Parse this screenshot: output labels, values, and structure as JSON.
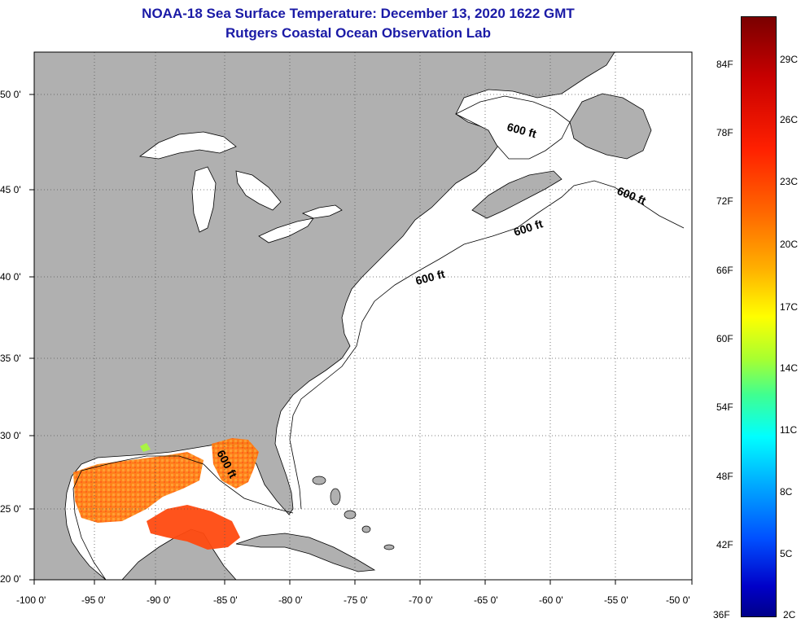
{
  "title": {
    "line1": "NOAA-18 Sea Surface Temperature:  December 13, 2020 1622 GMT",
    "line2": "Rutgers Coastal Ocean Observation Lab"
  },
  "map": {
    "lat_labels": [
      "50 0'",
      "45 0'",
      "40 0'",
      "35 0'",
      "30 0'",
      "25 0'",
      "20 0'"
    ],
    "lon_labels": [
      "-100 0'",
      "-95 0'",
      "-90 0'",
      "-85 0'",
      "-80 0'",
      "-75 0'",
      "-70 0'",
      "-65 0'",
      "-60 0'",
      "-55 0'",
      "-50 0'"
    ],
    "contour_labels": [
      "600 ft",
      "600 ft",
      "600 ft",
      "600 ft",
      "600 ft"
    ],
    "colors": {
      "land": "#b0b0b0",
      "ocean": "#ffffff",
      "grid": "#555555",
      "warm_sst": "#ff6a00"
    }
  },
  "colorbar": {
    "fahrenheit": [
      "84F",
      "78F",
      "72F",
      "66F",
      "60F",
      "54F",
      "48F",
      "42F",
      "36F"
    ],
    "celsius": [
      "29C",
      "26C",
      "23C",
      "20C",
      "17C",
      "14C",
      "11C",
      "8C",
      "5C",
      "2C"
    ]
  }
}
